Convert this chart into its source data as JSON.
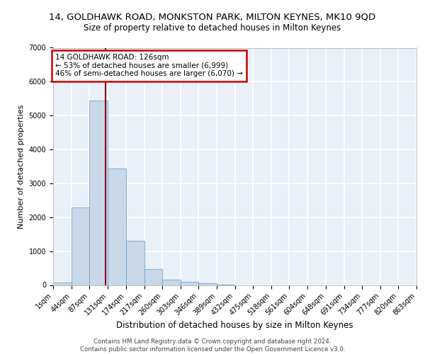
{
  "title_line1": "14, GOLDHAWK ROAD, MONKSTON PARK, MILTON KEYNES, MK10 9QD",
  "title_line2": "Size of property relative to detached houses in Milton Keynes",
  "xlabel": "Distribution of detached houses by size in Milton Keynes",
  "ylabel": "Number of detached properties",
  "footer_line1": "Contains HM Land Registry data © Crown copyright and database right 2024.",
  "footer_line2": "Contains public sector information licensed under the Open Government Licence v3.0.",
  "annotation_line1": "14 GOLDHAWK ROAD: 126sqm",
  "annotation_line2": "← 53% of detached houses are smaller (6,999)",
  "annotation_line3": "46% of semi-detached houses are larger (6,070) →",
  "property_size": 126,
  "bar_color": "#c8d8e8",
  "bar_edgecolor": "#5b9bd5",
  "vline_color": "#8b0000",
  "vline_x": 126,
  "bg_color": "#eaf0f8",
  "grid_color": "#ffffff",
  "bins": [
    1,
    44,
    87,
    131,
    174,
    217,
    260,
    303,
    346,
    389,
    432,
    475,
    518,
    561,
    604,
    648,
    691,
    734,
    777,
    820,
    863
  ],
  "bin_labels": [
    "1sqm",
    "44sqm",
    "87sqm",
    "131sqm",
    "174sqm",
    "217sqm",
    "260sqm",
    "303sqm",
    "346sqm",
    "389sqm",
    "432sqm",
    "475sqm",
    "518sqm",
    "561sqm",
    "604sqm",
    "648sqm",
    "691sqm",
    "734sqm",
    "777sqm",
    "820sqm",
    "863sqm"
  ],
  "counts": [
    80,
    2280,
    5450,
    3430,
    1310,
    460,
    160,
    90,
    50,
    20,
    0,
    0,
    0,
    0,
    0,
    0,
    0,
    0,
    0,
    0
  ],
  "ylim": [
    0,
    7000
  ],
  "yticks": [
    0,
    1000,
    2000,
    3000,
    4000,
    5000,
    6000,
    7000
  ],
  "annotation_box_color": "white",
  "annotation_box_edgecolor": "#cc0000",
  "title1_fontsize": 9.5,
  "title2_fontsize": 8.5,
  "ylabel_fontsize": 8,
  "xlabel_fontsize": 8.5,
  "tick_fontsize": 7,
  "footer_fontsize": 6.2,
  "annot_fontsize": 7.5
}
